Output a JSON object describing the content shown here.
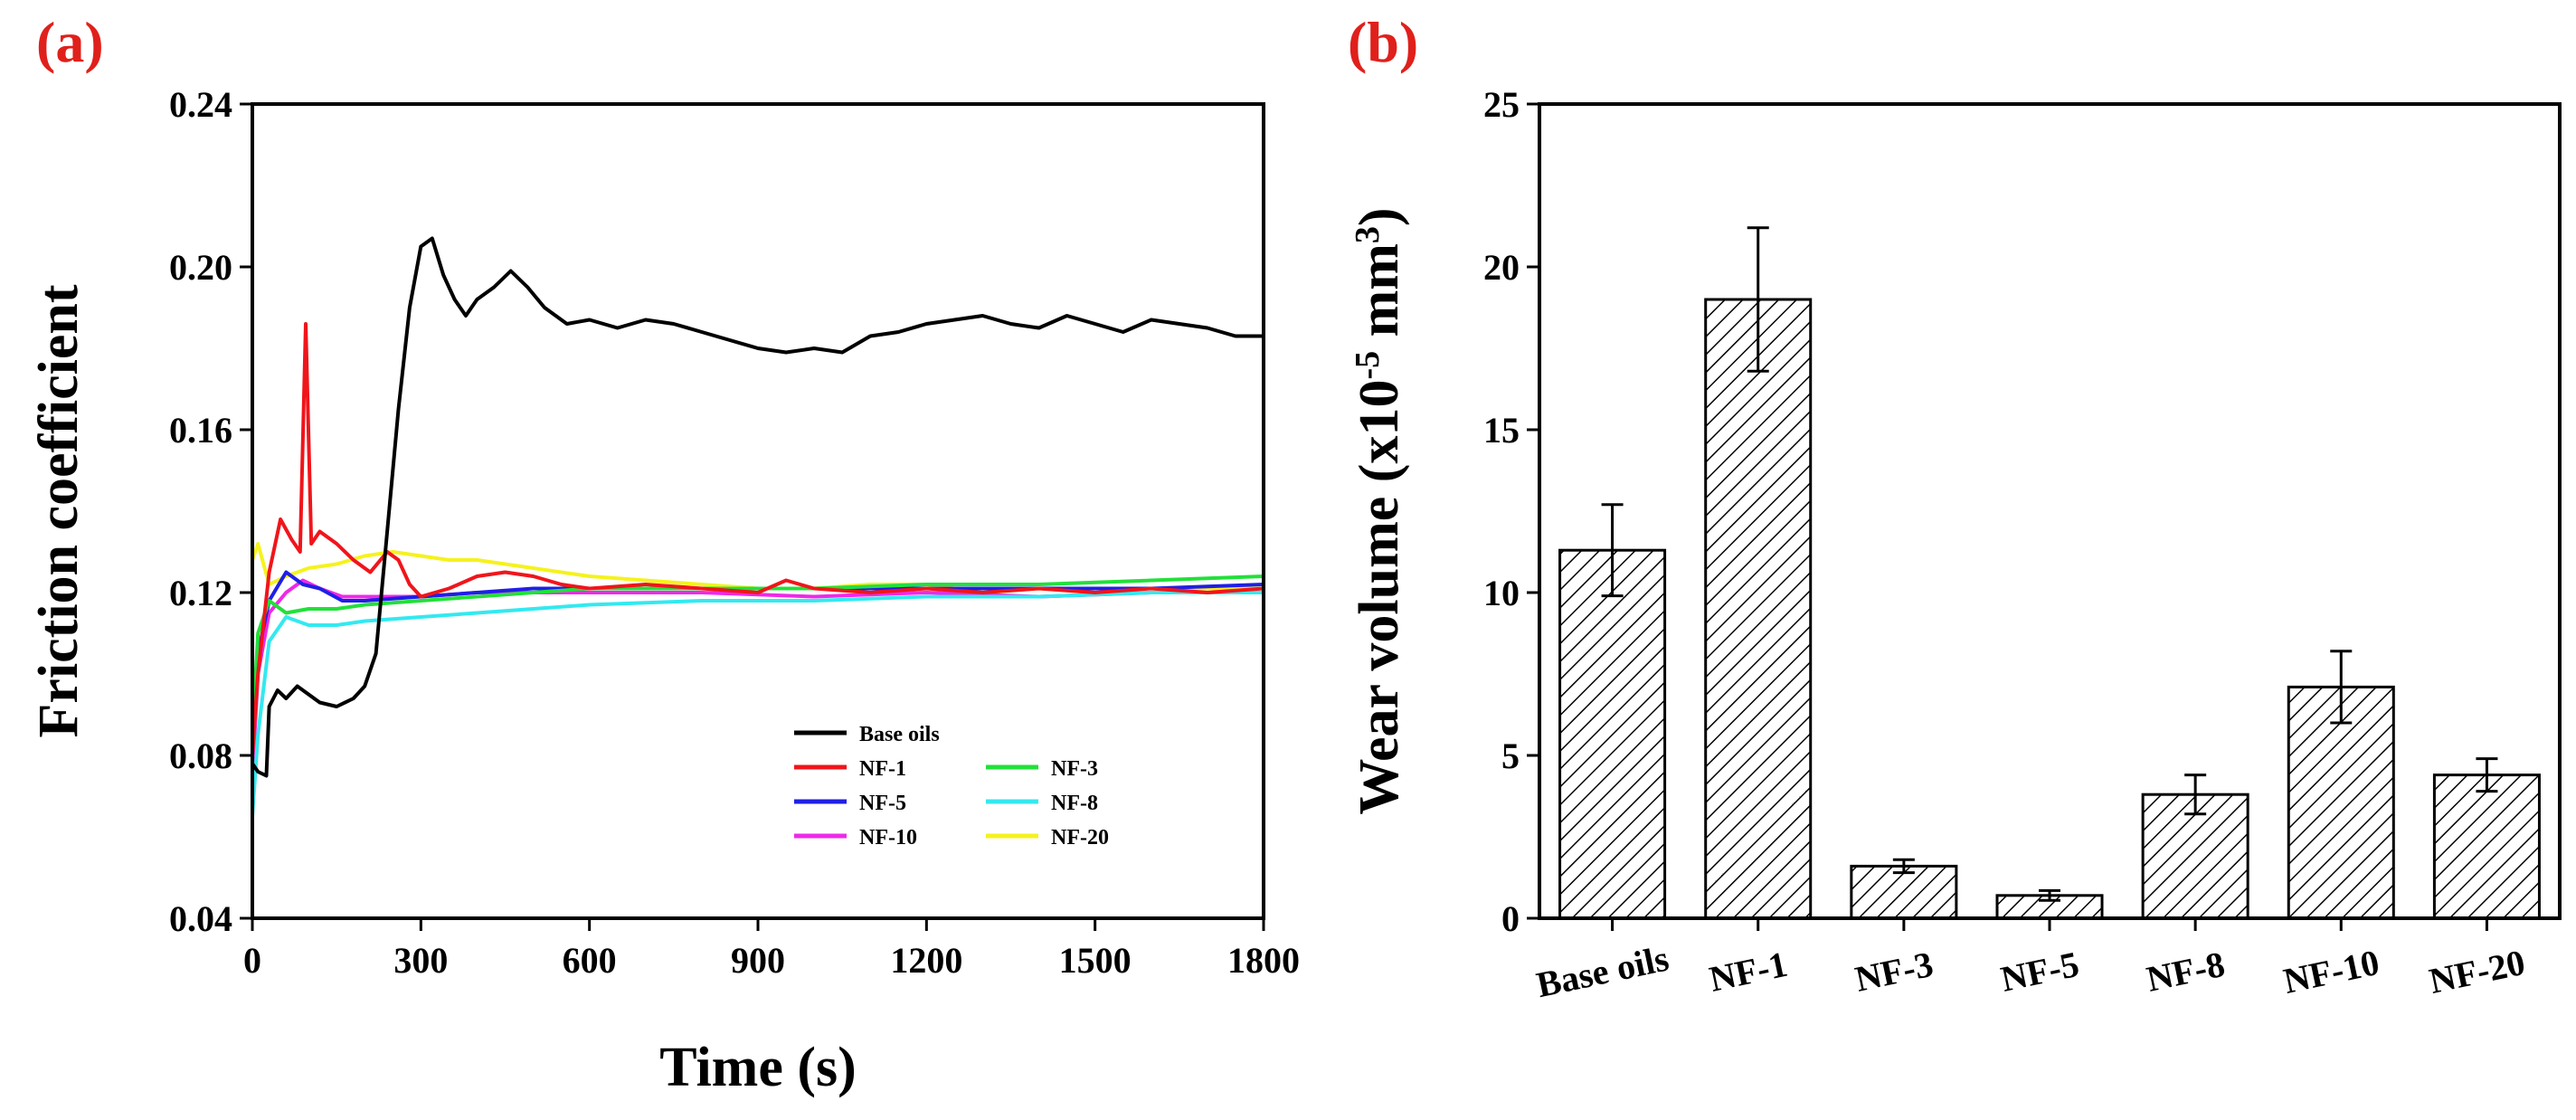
{
  "chart_data": [
    {
      "panel_label": "(a)",
      "type": "line",
      "xlabel": "Time (s)",
      "ylabel": "Friction coefficient",
      "xlim": [
        0,
        1800
      ],
      "ylim": [
        0.04,
        0.24
      ],
      "xticks": [
        "0",
        "300",
        "600",
        "900",
        "1200",
        "1500",
        "1800"
      ],
      "yticks": [
        "0.04",
        "0.08",
        "0.12",
        "0.16",
        "0.20",
        "0.24"
      ],
      "legend_position": "bottom-right",
      "series": [
        {
          "name": "Base oils",
          "color": "#000000",
          "points": [
            [
              0,
              0.078
            ],
            [
              10,
              0.076
            ],
            [
              25,
              0.075
            ],
            [
              30,
              0.092
            ],
            [
              45,
              0.096
            ],
            [
              60,
              0.094
            ],
            [
              80,
              0.097
            ],
            [
              100,
              0.095
            ],
            [
              120,
              0.093
            ],
            [
              150,
              0.092
            ],
            [
              180,
              0.094
            ],
            [
              200,
              0.097
            ],
            [
              220,
              0.105
            ],
            [
              240,
              0.135
            ],
            [
              260,
              0.165
            ],
            [
              280,
              0.19
            ],
            [
              300,
              0.205
            ],
            [
              320,
              0.207
            ],
            [
              340,
              0.198
            ],
            [
              360,
              0.192
            ],
            [
              380,
              0.188
            ],
            [
              400,
              0.192
            ],
            [
              430,
              0.195
            ],
            [
              460,
              0.199
            ],
            [
              490,
              0.195
            ],
            [
              520,
              0.19
            ],
            [
              560,
              0.186
            ],
            [
              600,
              0.187
            ],
            [
              650,
              0.185
            ],
            [
              700,
              0.187
            ],
            [
              750,
              0.186
            ],
            [
              800,
              0.184
            ],
            [
              850,
              0.182
            ],
            [
              900,
              0.18
            ],
            [
              950,
              0.179
            ],
            [
              1000,
              0.18
            ],
            [
              1050,
              0.179
            ],
            [
              1100,
              0.183
            ],
            [
              1150,
              0.184
            ],
            [
              1200,
              0.186
            ],
            [
              1250,
              0.187
            ],
            [
              1300,
              0.188
            ],
            [
              1350,
              0.186
            ],
            [
              1400,
              0.185
            ],
            [
              1450,
              0.188
            ],
            [
              1500,
              0.186
            ],
            [
              1550,
              0.184
            ],
            [
              1600,
              0.187
            ],
            [
              1650,
              0.186
            ],
            [
              1700,
              0.185
            ],
            [
              1750,
              0.183
            ],
            [
              1800,
              0.183
            ]
          ]
        },
        {
          "name": "NF-1",
          "color": "#f0151b",
          "points": [
            [
              0,
              0.08
            ],
            [
              10,
              0.1
            ],
            [
              30,
              0.125
            ],
            [
              50,
              0.138
            ],
            [
              70,
              0.133
            ],
            [
              85,
              0.13
            ],
            [
              95,
              0.186
            ],
            [
              105,
              0.132
            ],
            [
              120,
              0.135
            ],
            [
              150,
              0.132
            ],
            [
              180,
              0.128
            ],
            [
              210,
              0.125
            ],
            [
              240,
              0.13
            ],
            [
              260,
              0.128
            ],
            [
              280,
              0.122
            ],
            [
              300,
              0.119
            ],
            [
              350,
              0.121
            ],
            [
              400,
              0.124
            ],
            [
              450,
              0.125
            ],
            [
              500,
              0.124
            ],
            [
              550,
              0.122
            ],
            [
              600,
              0.121
            ],
            [
              700,
              0.122
            ],
            [
              800,
              0.121
            ],
            [
              900,
              0.12
            ],
            [
              950,
              0.123
            ],
            [
              1000,
              0.121
            ],
            [
              1100,
              0.12
            ],
            [
              1200,
              0.121
            ],
            [
              1300,
              0.12
            ],
            [
              1400,
              0.121
            ],
            [
              1500,
              0.12
            ],
            [
              1600,
              0.121
            ],
            [
              1700,
              0.12
            ],
            [
              1800,
              0.121
            ]
          ]
        },
        {
          "name": "NF-3",
          "color": "#22e03a",
          "points": [
            [
              0,
              0.085
            ],
            [
              10,
              0.11
            ],
            [
              30,
              0.118
            ],
            [
              60,
              0.115
            ],
            [
              100,
              0.116
            ],
            [
              150,
              0.116
            ],
            [
              200,
              0.117
            ],
            [
              300,
              0.118
            ],
            [
              400,
              0.119
            ],
            [
              500,
              0.12
            ],
            [
              600,
              0.121
            ],
            [
              800,
              0.121
            ],
            [
              1000,
              0.121
            ],
            [
              1200,
              0.122
            ],
            [
              1400,
              0.122
            ],
            [
              1600,
              0.123
            ],
            [
              1800,
              0.124
            ]
          ]
        },
        {
          "name": "NF-5",
          "color": "#1f1fe6",
          "points": [
            [
              0,
              0.09
            ],
            [
              10,
              0.105
            ],
            [
              30,
              0.118
            ],
            [
              60,
              0.125
            ],
            [
              90,
              0.122
            ],
            [
              120,
              0.121
            ],
            [
              160,
              0.118
            ],
            [
              200,
              0.118
            ],
            [
              300,
              0.119
            ],
            [
              400,
              0.12
            ],
            [
              500,
              0.121
            ],
            [
              600,
              0.121
            ],
            [
              800,
              0.121
            ],
            [
              1000,
              0.121
            ],
            [
              1200,
              0.121
            ],
            [
              1400,
              0.121
            ],
            [
              1600,
              0.121
            ],
            [
              1800,
              0.122
            ]
          ]
        },
        {
          "name": "NF-8",
          "color": "#33e9f0",
          "points": [
            [
              0,
              0.065
            ],
            [
              10,
              0.085
            ],
            [
              30,
              0.108
            ],
            [
              60,
              0.114
            ],
            [
              100,
              0.112
            ],
            [
              150,
              0.112
            ],
            [
              200,
              0.113
            ],
            [
              300,
              0.114
            ],
            [
              400,
              0.115
            ],
            [
              500,
              0.116
            ],
            [
              600,
              0.117
            ],
            [
              800,
              0.118
            ],
            [
              1000,
              0.118
            ],
            [
              1200,
              0.119
            ],
            [
              1400,
              0.119
            ],
            [
              1600,
              0.12
            ],
            [
              1800,
              0.12
            ]
          ]
        },
        {
          "name": "NF-10",
          "color": "#ee29e8",
          "points": [
            [
              0,
              0.075
            ],
            [
              10,
              0.1
            ],
            [
              30,
              0.115
            ],
            [
              60,
              0.12
            ],
            [
              90,
              0.123
            ],
            [
              120,
              0.121
            ],
            [
              160,
              0.119
            ],
            [
              200,
              0.119
            ],
            [
              300,
              0.119
            ],
            [
              400,
              0.12
            ],
            [
              500,
              0.12
            ],
            [
              600,
              0.12
            ],
            [
              800,
              0.12
            ],
            [
              1000,
              0.119
            ],
            [
              1200,
              0.12
            ],
            [
              1400,
              0.119
            ],
            [
              1600,
              0.12
            ],
            [
              1800,
              0.12
            ]
          ]
        },
        {
          "name": "NF-20",
          "color": "#f5f21e",
          "points": [
            [
              0,
              0.128
            ],
            [
              10,
              0.132
            ],
            [
              30,
              0.122
            ],
            [
              60,
              0.124
            ],
            [
              100,
              0.126
            ],
            [
              150,
              0.127
            ],
            [
              200,
              0.129
            ],
            [
              250,
              0.13
            ],
            [
              300,
              0.129
            ],
            [
              350,
              0.128
            ],
            [
              400,
              0.128
            ],
            [
              450,
              0.127
            ],
            [
              500,
              0.126
            ],
            [
              600,
              0.124
            ],
            [
              700,
              0.123
            ],
            [
              800,
              0.122
            ],
            [
              900,
              0.121
            ],
            [
              1000,
              0.121
            ],
            [
              1100,
              0.122
            ],
            [
              1200,
              0.122
            ],
            [
              1300,
              0.12
            ],
            [
              1400,
              0.121
            ],
            [
              1500,
              0.12
            ],
            [
              1600,
              0.12
            ],
            [
              1700,
              0.121
            ],
            [
              1800,
              0.121
            ]
          ]
        }
      ]
    },
    {
      "panel_label": "(b)",
      "type": "bar",
      "ylabel_main": "Wear volume (x10",
      "ylabel_sup1": "-5",
      "ylabel_mid": " mm",
      "ylabel_sup2": "3",
      "ylabel_end": ")",
      "ylim": [
        0,
        25
      ],
      "yticks": [
        "0",
        "5",
        "10",
        "15",
        "20",
        "25"
      ],
      "fill_pattern": "diagonal-hatch",
      "categories": [
        "Base oils",
        "NF-1",
        "NF-3",
        "NF-5",
        "NF-8",
        "NF-10",
        "NF-20"
      ],
      "values": [
        11.3,
        19.0,
        1.6,
        0.7,
        3.8,
        7.1,
        4.4
      ],
      "errors": [
        1.4,
        2.2,
        0.2,
        0.15,
        0.6,
        1.1,
        0.5
      ]
    }
  ]
}
